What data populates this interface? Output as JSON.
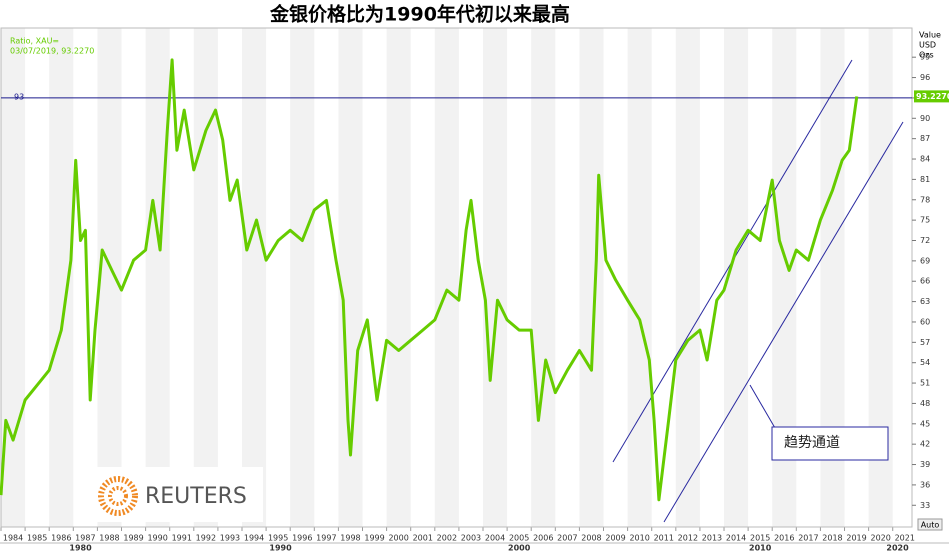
{
  "chart_data": {
    "type": "line",
    "title": "金银价格比为1990年代初以来最高",
    "legend_lines": [
      "Ratio, XAU=",
      "03/07/2019, 93.2270"
    ],
    "axis_unit_lines": [
      "Value",
      "USD",
      "Ozs"
    ],
    "axis_mode": "Auto",
    "annotation": "趋势通道",
    "logo": "REUTERS",
    "hline": 93,
    "current_value": {
      "value": 93.227,
      "label": "93.2270"
    },
    "xlim": [
      1984,
      2021.8
    ],
    "ylim": [
      29.8,
      103.3
    ],
    "yticks": [
      33,
      36,
      39,
      42,
      45,
      48,
      51,
      54,
      57,
      60,
      63,
      66,
      69,
      72,
      75,
      78,
      81,
      84,
      87,
      90,
      93,
      96,
      99
    ],
    "xticks": [
      {
        "value": 1984.5,
        "label": "1984"
      },
      {
        "value": 1985.5,
        "label": "1985"
      },
      {
        "value": 1986.5,
        "label": "1986"
      },
      {
        "value": 1987.5,
        "label": "1987"
      },
      {
        "value": 1988.5,
        "label": "1988"
      },
      {
        "value": 1989.5,
        "label": "1989"
      },
      {
        "value": 1990.5,
        "label": "1990"
      },
      {
        "value": 1991.5,
        "label": "1991"
      },
      {
        "value": 1992.5,
        "label": "1992"
      },
      {
        "value": 1993.5,
        "label": "1993"
      },
      {
        "value": 1994.5,
        "label": "1994"
      },
      {
        "value": 1995.5,
        "label": "1995"
      },
      {
        "value": 1996.5,
        "label": "1996"
      },
      {
        "value": 1997.5,
        "label": "1997"
      },
      {
        "value": 1998.5,
        "label": "1998"
      },
      {
        "value": 1999.5,
        "label": "1999"
      },
      {
        "value": 2000.5,
        "label": "2000"
      },
      {
        "value": 2001.5,
        "label": "2001"
      },
      {
        "value": 2002.5,
        "label": "2002"
      },
      {
        "value": 2003.5,
        "label": "2003"
      },
      {
        "value": 2004.5,
        "label": "2004"
      },
      {
        "value": 2005.5,
        "label": "2005"
      },
      {
        "value": 2006.5,
        "label": "2006"
      },
      {
        "value": 2007.5,
        "label": "2007"
      },
      {
        "value": 2008.5,
        "label": "2008"
      },
      {
        "value": 2009.5,
        "label": "2009"
      },
      {
        "value": 2010.5,
        "label": "2010"
      },
      {
        "value": 2011.5,
        "label": "2011"
      },
      {
        "value": 2012.5,
        "label": "2012"
      },
      {
        "value": 2013.5,
        "label": "2013"
      },
      {
        "value": 2014.5,
        "label": "2014"
      },
      {
        "value": 2015.5,
        "label": "2015"
      },
      {
        "value": 2016.5,
        "label": "2016"
      },
      {
        "value": 2017.5,
        "label": "2017"
      },
      {
        "value": 2018.5,
        "label": "2018"
      },
      {
        "value": 2019.5,
        "label": "2019"
      },
      {
        "value": 2020.5,
        "label": "2020"
      },
      {
        "value": 2021.5,
        "label": "2021"
      }
    ],
    "decade_ticks": [
      {
        "value": 1987.3,
        "label": "1980"
      },
      {
        "value": 1995.6,
        "label": "1990"
      },
      {
        "value": 2005.5,
        "label": "2000"
      },
      {
        "value": 2015.5,
        "label": "2010"
      },
      {
        "value": 2021.2,
        "label": "2020"
      }
    ],
    "series": [
      {
        "name": "Ratio, XAU=",
        "color": "#66cc00",
        "x": [
          1984.0,
          1984.2,
          1984.5,
          1985,
          1985.5,
          1986,
          1986.5,
          1986.9,
          1987.1,
          1987.3,
          1987.5,
          1987.7,
          1987.9,
          1988.2,
          1988.6,
          1989,
          1989.5,
          1990,
          1990.3,
          1990.6,
          1990.9,
          1991.1,
          1991.3,
          1991.6,
          1992,
          1992.5,
          1992.9,
          1993.2,
          1993.5,
          1993.8,
          1994.2,
          1994.6,
          1995,
          1995.5,
          1996,
          1996.5,
          1997,
          1997.5,
          1997.9,
          1998.2,
          1998.4,
          1998.5,
          1998.8,
          1999.2,
          1999.6,
          2000,
          2000.5,
          2001,
          2001.5,
          2002,
          2002.5,
          2003,
          2003.3,
          2003.5,
          2003.8,
          2004.1,
          2004.3,
          2004.6,
          2005,
          2005.5,
          2006,
          2006.3,
          2006.6,
          2007,
          2007.5,
          2008,
          2008.5,
          2008.7,
          2008.8,
          2009.1,
          2009.5,
          2010,
          2010.5,
          2010.9,
          2011.1,
          2011.3,
          2011.7,
          2012,
          2012.5,
          2013,
          2013.3,
          2013.7,
          2014,
          2014.5,
          2015,
          2015.5,
          2016,
          2016.3,
          2016.7,
          2017,
          2017.5,
          2018,
          2018.5,
          2018.9,
          2019.2,
          2019.51
        ],
        "values": [
          34.5,
          45.5,
          42.6,
          48.5,
          50.7,
          52.9,
          58.8,
          69.1,
          83.8,
          72,
          73.5,
          48.5,
          58.8,
          70.6,
          67.6,
          64.7,
          69.1,
          70.6,
          77.9,
          70.6,
          88.2,
          98.6,
          85.3,
          91.2,
          82.4,
          88.2,
          91.2,
          86.8,
          77.9,
          80.9,
          70.6,
          75,
          69.1,
          72,
          73.5,
          72,
          76.5,
          77.9,
          69.1,
          63.2,
          45.5,
          40.4,
          55.8,
          60.3,
          48.5,
          57.3,
          55.8,
          57.3,
          58.8,
          60.3,
          64.7,
          63.2,
          73.5,
          77.9,
          69.1,
          63.2,
          51.4,
          63.2,
          60.3,
          58.8,
          58.8,
          45.5,
          54.4,
          49.6,
          52.9,
          55.8,
          52.9,
          69.1,
          81.6,
          69.1,
          66.2,
          63.2,
          60.3,
          54.4,
          45.5,
          33.8,
          45.5,
          54.4,
          57.3,
          58.8,
          54.4,
          63.2,
          64.7,
          70.6,
          73.5,
          72,
          80.9,
          72,
          67.6,
          70.6,
          69.1,
          75,
          79.4,
          83.8,
          85.3,
          93.227
        ]
      }
    ]
  }
}
